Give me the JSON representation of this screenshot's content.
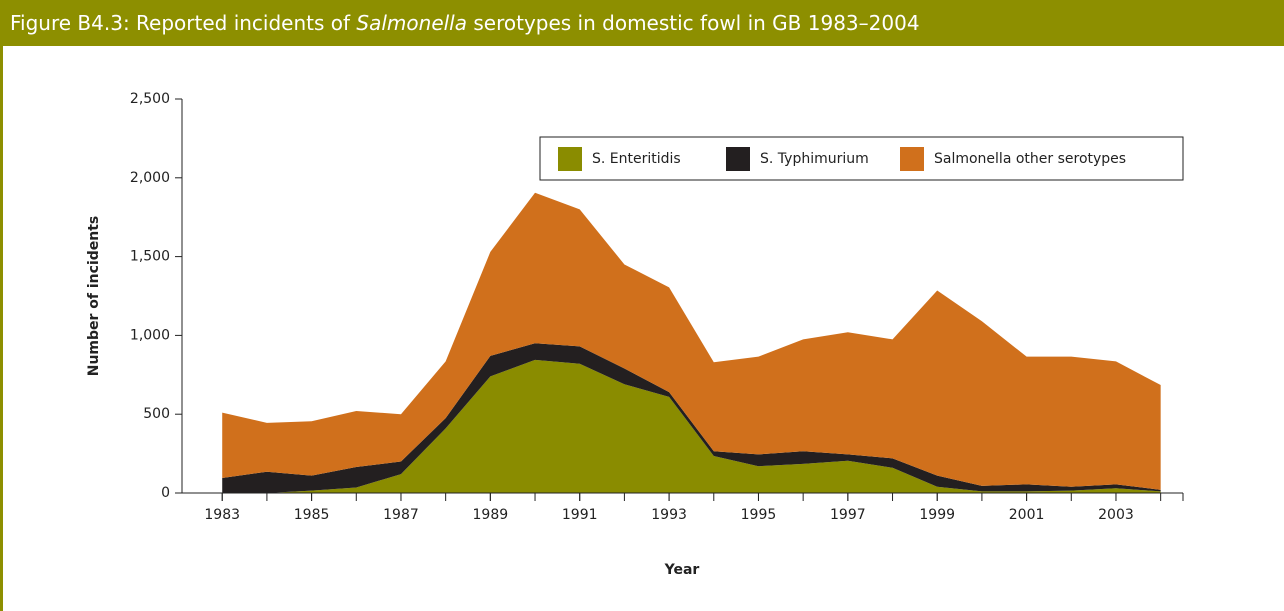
{
  "chart_data": {
    "type": "stacked_area",
    "title_parts": [
      "Figure B4.3: Reported incidents of ",
      "Salmonella",
      " serotypes in domestic fowl in GB 1983–2004"
    ],
    "xlabel": "Year",
    "ylabel": "Number of incidents",
    "x": [
      1983,
      1984,
      1985,
      1986,
      1987,
      1988,
      1989,
      1990,
      1991,
      1992,
      1993,
      1994,
      1995,
      1996,
      1997,
      1998,
      1999,
      2000,
      2001,
      2002,
      2003,
      2004
    ],
    "series": [
      {
        "name": "S. Enteritidis",
        "color": "#8a8c00",
        "values": [
          0,
          0,
          15,
          35,
          120,
          410,
          740,
          845,
          820,
          690,
          610,
          235,
          170,
          185,
          205,
          160,
          40,
          10,
          10,
          15,
          30,
          10
        ]
      },
      {
        "name": "S. Typhimurium",
        "color": "#231f20",
        "values": [
          95,
          135,
          95,
          130,
          80,
          65,
          130,
          105,
          110,
          100,
          30,
          30,
          75,
          80,
          40,
          60,
          70,
          35,
          45,
          25,
          25,
          10
        ]
      },
      {
        "name": "Salmonella other serotypes",
        "color": "#d0701c",
        "values": [
          415,
          310,
          345,
          355,
          300,
          360,
          660,
          955,
          870,
          660,
          665,
          565,
          620,
          710,
          775,
          755,
          1175,
          1045,
          810,
          825,
          780,
          665
        ]
      }
    ],
    "xlim": [
      1982.1,
      2004.5
    ],
    "xticks": [
      1983,
      1985,
      1987,
      1989,
      1991,
      1993,
      1995,
      1997,
      1999,
      2001,
      2003
    ],
    "ylim": [
      0,
      2500
    ],
    "yticks": [
      0,
      {
        "value": 500,
        "label": "500"
      },
      {
        "value": 1000,
        "label": "1,000"
      },
      {
        "value": 1500,
        "label": "1,500"
      },
      {
        "value": 2000,
        "label": "2,000"
      },
      {
        "value": 2500,
        "label": "2,500"
      }
    ],
    "grid": false,
    "legend": "top-right"
  }
}
